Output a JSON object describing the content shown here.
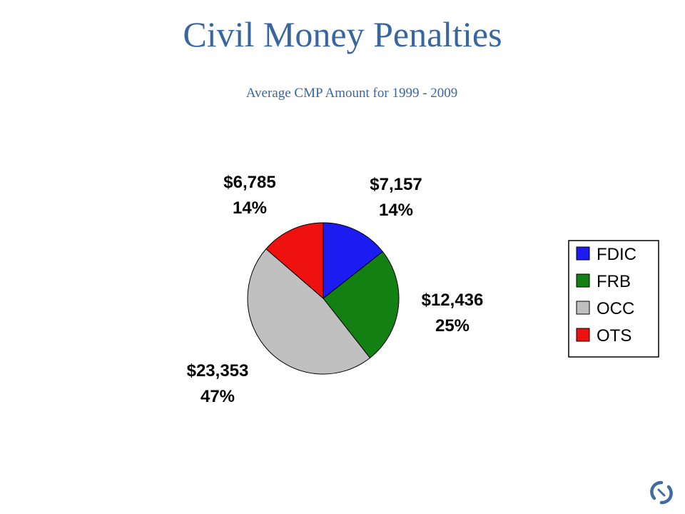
{
  "slide": {
    "title": "Civil Money Penalties",
    "subtitle": "Average CMP Amount for 1999 - 2009"
  },
  "chart_data": {
    "type": "pie",
    "title": "",
    "slices": [
      {
        "name": "FDIC",
        "value": 7157,
        "value_label": "$7,157",
        "percent_label": "14%",
        "color": "#1c1cf2"
      },
      {
        "name": "FRB",
        "value": 12436,
        "value_label": "$12,436",
        "percent_label": "25%",
        "color": "#128012"
      },
      {
        "name": "OCC",
        "value": 23353,
        "value_label": "$23,353",
        "percent_label": "47%",
        "color": "#c0c0c0"
      },
      {
        "name": "OTS",
        "value": 6785,
        "value_label": "$6,785",
        "percent_label": "14%",
        "color": "#ef1010"
      }
    ],
    "legend": {
      "placement": "right",
      "entries": [
        "FDIC",
        "FRB",
        "OCC",
        "OTS"
      ]
    },
    "start_angle": "12 o'clock",
    "direction": "clockwise"
  },
  "logo": {
    "icon": "agency-logo-icon"
  }
}
